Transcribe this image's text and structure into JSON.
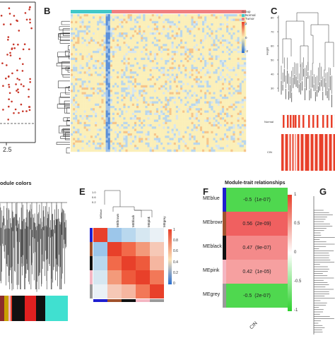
{
  "panels": {
    "A": {
      "tick": "2.5"
    },
    "B": {
      "letter": "B",
      "legend_title": "Group",
      "legend_normal": "Normal",
      "legend_tumor": "Tumor",
      "scale": [
        "2",
        "0",
        "-2"
      ]
    },
    "C": {
      "letter": "C",
      "ylabel": "Height",
      "yticks": [
        "80",
        "70",
        "60",
        "50",
        "40",
        "30"
      ],
      "track_labels": [
        "Normal",
        "CIN"
      ]
    },
    "D": {
      "title": "odule colors"
    },
    "E": {
      "letter": "E",
      "scale": [
        "1",
        "0.8",
        "0.6",
        "0.4",
        "0.2",
        "0"
      ],
      "labels": [
        "MEbrown",
        "MEblack",
        "MEpink",
        "MEgrey",
        "MEblue"
      ],
      "dendro_ticks": [
        "1.0",
        "0.6",
        "0.2"
      ]
    },
    "F": {
      "letter": "F",
      "title": "Module-trait relationships",
      "xlabel": "CIN",
      "scale": [
        "1",
        "0.5",
        "0",
        "-0.5",
        "-1"
      ],
      "rows": [
        {
          "name": "MEblue",
          "corr": "-0.5",
          "p": "(1e-07)",
          "color": "#1f1fd0",
          "fill": "#4fd84f"
        },
        {
          "name": "MEbrown",
          "corr": "0.56",
          "p": "(2e-09)",
          "color": "#a0522d",
          "fill": "#f06060"
        },
        {
          "name": "MEblack",
          "corr": "0.47",
          "p": "(9e-07)",
          "color": "#111111",
          "fill": "#f48a8a"
        },
        {
          "name": "MEpink",
          "corr": "0.42",
          "p": "(1e-05)",
          "color": "#f4b6c2",
          "fill": "#f6a0a0"
        },
        {
          "name": "MEgrey",
          "corr": "-0.5",
          "p": "(2e-07)",
          "color": "#9a9a9a",
          "fill": "#4fd84f"
        }
      ]
    },
    "G": {
      "letter": "G"
    }
  },
  "colors": {
    "heat_red": "#e8402a",
    "heat_blue": "#2a6fd0",
    "heat_yellow": "#fbeeb4",
    "module_turquoise": "#40e0d0"
  }
}
